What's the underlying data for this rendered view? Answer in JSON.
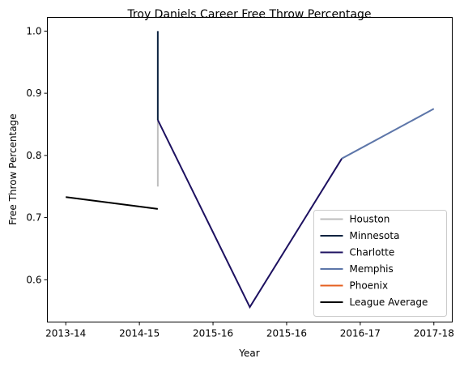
{
  "chart_data": {
    "type": "line",
    "title": "Troy Daniels Career Free Throw Percentage",
    "xlabel": "Year",
    "ylabel": "Free Throw Percentage",
    "x_ticks": [
      {
        "pos": 0,
        "label": "2013-14"
      },
      {
        "pos": 1,
        "label": "2014-15"
      },
      {
        "pos": 2,
        "label": "2015-16"
      },
      {
        "pos": 3,
        "label": "2015-16"
      },
      {
        "pos": 4,
        "label": "2016-17"
      },
      {
        "pos": 5,
        "label": "2017-18"
      }
    ],
    "y_ticks": [
      0.6,
      0.7,
      0.8,
      0.9,
      1.0
    ],
    "xlim": [
      -0.25,
      5.25
    ],
    "ylim": [
      0.532,
      1.022
    ],
    "grid": false,
    "legend_position": "lower-right",
    "series": [
      {
        "name": "Houston",
        "color": "#bebebe",
        "points": [
          [
            1.25,
            0.75
          ],
          [
            1.25,
            0.857
          ]
        ]
      },
      {
        "name": "Minnesota",
        "color": "#0c2340",
        "points": [
          [
            1.25,
            1.0
          ],
          [
            1.25,
            0.857
          ]
        ]
      },
      {
        "name": "Charlotte",
        "color": "#1d1160",
        "points": [
          [
            1.25,
            0.857
          ],
          [
            2.5,
            0.556
          ],
          [
            3.75,
            0.795
          ]
        ]
      },
      {
        "name": "Memphis",
        "color": "#5d76a9",
        "points": [
          [
            3.75,
            0.795
          ],
          [
            5.0,
            0.875
          ]
        ]
      },
      {
        "name": "Phoenix",
        "color": "#e56020",
        "points": []
      },
      {
        "name": "League Average",
        "color": "#000000",
        "points": [
          [
            0.0,
            0.733
          ],
          [
            1.25,
            0.714
          ]
        ]
      }
    ]
  }
}
